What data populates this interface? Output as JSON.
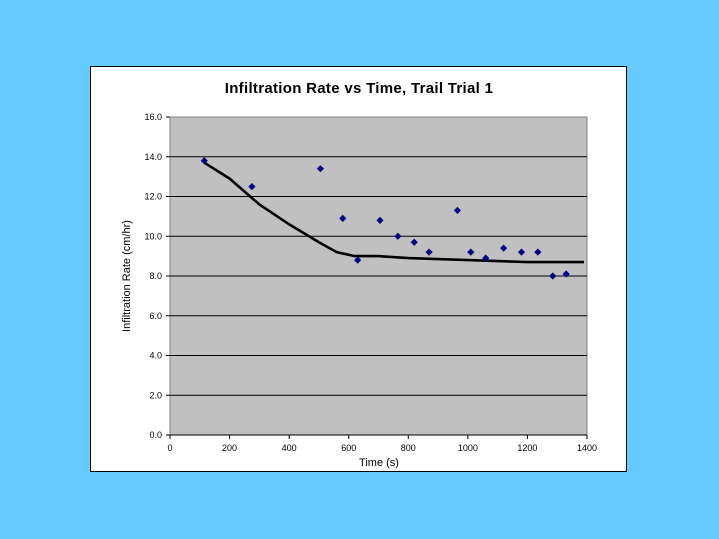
{
  "colors": {
    "background": "#66ccff",
    "plot_area": "#c0c0c0",
    "markers": "#000080",
    "trendline": "#000000"
  },
  "chart_data": {
    "type": "scatter",
    "title": "Infiltration Rate vs Time, Trail Trial 1",
    "xlabel": "Time (s)",
    "ylabel": "Infiltration Rate (cm/hr)",
    "xlim": [
      0,
      1400
    ],
    "ylim": [
      0,
      16
    ],
    "x_ticks": [
      "0",
      "200",
      "400",
      "600",
      "800",
      "1000",
      "1200",
      "1400"
    ],
    "y_ticks": [
      "0.0",
      "2.0",
      "4.0",
      "6.0",
      "8.0",
      "10.0",
      "12.0",
      "14.0",
      "16.0"
    ],
    "grid": "horizontal",
    "legend": "none",
    "series": [
      {
        "marker": "diamond",
        "points": [
          [
            115,
            13.8
          ],
          [
            275,
            12.5
          ],
          [
            505,
            13.4
          ],
          [
            580,
            10.9
          ],
          [
            630,
            8.8
          ],
          [
            705,
            10.8
          ],
          [
            765,
            10.0
          ],
          [
            820,
            9.7
          ],
          [
            870,
            9.2
          ],
          [
            965,
            11.3
          ],
          [
            1010,
            9.2
          ],
          [
            1060,
            8.9
          ],
          [
            1120,
            9.4
          ],
          [
            1180,
            9.2
          ],
          [
            1235,
            9.2
          ],
          [
            1285,
            8.0
          ],
          [
            1330,
            8.1
          ]
        ]
      }
    ],
    "trendline": [
      [
        115,
        13.7
      ],
      [
        200,
        12.9
      ],
      [
        300,
        11.6
      ],
      [
        400,
        10.6
      ],
      [
        500,
        9.7
      ],
      [
        560,
        9.2
      ],
      [
        620,
        9.0
      ],
      [
        700,
        9.0
      ],
      [
        800,
        8.9
      ],
      [
        900,
        8.85
      ],
      [
        1000,
        8.8
      ],
      [
        1100,
        8.75
      ],
      [
        1200,
        8.7
      ],
      [
        1300,
        8.7
      ],
      [
        1390,
        8.7
      ]
    ]
  }
}
